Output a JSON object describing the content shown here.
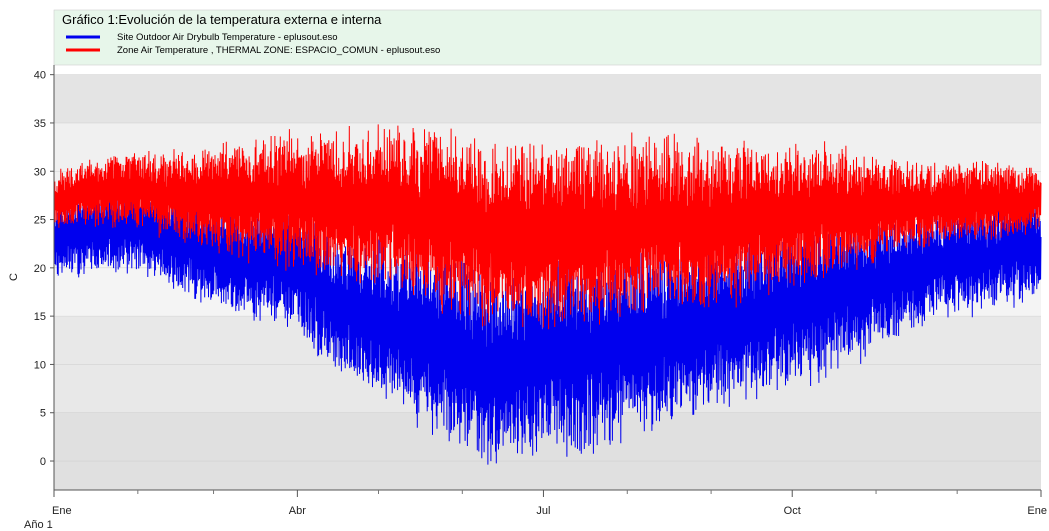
{
  "chart_data": {
    "type": "line",
    "title": "Gráfico 1:Evolución de la temperatura externa e interna",
    "xlabel": "Año 1",
    "ylabel": "C",
    "ylim": [
      -3,
      41
    ],
    "yticks": [
      0,
      5,
      10,
      15,
      20,
      25,
      30,
      35,
      40
    ],
    "xlim": [
      0,
      365
    ],
    "xtick_labels": [
      {
        "day": 0,
        "label": "Ene"
      },
      {
        "day": 90,
        "label": "Abr"
      },
      {
        "day": 181,
        "label": "Jul"
      },
      {
        "day": 273,
        "label": "Oct"
      },
      {
        "day": 365,
        "label": "Ene"
      }
    ],
    "minor_xticks_days": [
      31,
      59,
      120,
      151,
      212,
      243,
      304,
      334
    ],
    "background_bands": [
      {
        "from": 35,
        "to": 40,
        "color": "#e4e4e4"
      },
      {
        "from": 25,
        "to": 35,
        "color": "#f0f0f0"
      },
      {
        "from": 15,
        "to": 25,
        "color": "#f4f4f4"
      },
      {
        "from": 5,
        "to": 15,
        "color": "#e8e8e8"
      },
      {
        "from": -3,
        "to": 5,
        "color": "#e0e0e0"
      }
    ],
    "grid": "horizontal",
    "legend_position": "top",
    "series": [
      {
        "name": "Site Outdoor Air Drybulb Temperature  - eplusout.eso",
        "color": "#0000ee",
        "envelope": {
          "days": [
            0,
            15,
            30,
            45,
            60,
            75,
            90,
            105,
            120,
            135,
            150,
            160,
            170,
            181,
            195,
            210,
            225,
            240,
            255,
            270,
            285,
            300,
            315,
            330,
            345,
            360,
            365
          ],
          "mid": [
            23,
            24,
            24,
            22.5,
            21.5,
            20.5,
            20,
            16,
            15,
            13,
            11,
            9,
            10,
            11,
            11,
            12,
            13,
            14,
            15,
            16,
            17,
            18,
            19.5,
            20.5,
            21,
            22,
            22
          ],
          "amp": [
            4,
            5,
            5,
            5.5,
            6,
            6.5,
            7,
            8,
            9,
            10,
            11,
            11,
            11,
            11,
            11,
            10.5,
            10,
            10,
            9.5,
            9,
            9,
            8,
            7,
            6.5,
            6,
            6,
            5
          ]
        },
        "extremes": {
          "max": 35.5,
          "min": -1.5
        }
      },
      {
        "name": "Zone Air Temperature , THERMAL ZONE: ESPACIO_COMUN - eplusout.eso",
        "color": "#ff0000",
        "envelope": {
          "days": [
            0,
            15,
            30,
            45,
            60,
            75,
            90,
            105,
            120,
            135,
            150,
            160,
            170,
            181,
            195,
            210,
            225,
            240,
            255,
            270,
            285,
            300,
            315,
            330,
            345,
            360,
            365
          ],
          "mid": [
            27,
            28,
            28,
            27.5,
            27,
            27,
            27,
            26.5,
            26.5,
            25.5,
            24.5,
            23.5,
            23.5,
            23.5,
            24,
            24,
            24.5,
            24.5,
            25,
            25.5,
            26,
            26,
            26.5,
            26.5,
            27,
            27,
            27
          ],
          "amp": [
            3,
            4,
            4.5,
            5,
            6,
            7,
            8,
            8.5,
            9,
            10,
            10,
            10.5,
            10.5,
            10.5,
            10,
            10,
            10,
            9.5,
            9,
            8,
            7.5,
            6.5,
            5,
            4.5,
            4.5,
            4,
            3
          ]
        },
        "extremes": {
          "max": 38.2,
          "min": 13.2
        }
      }
    ]
  }
}
